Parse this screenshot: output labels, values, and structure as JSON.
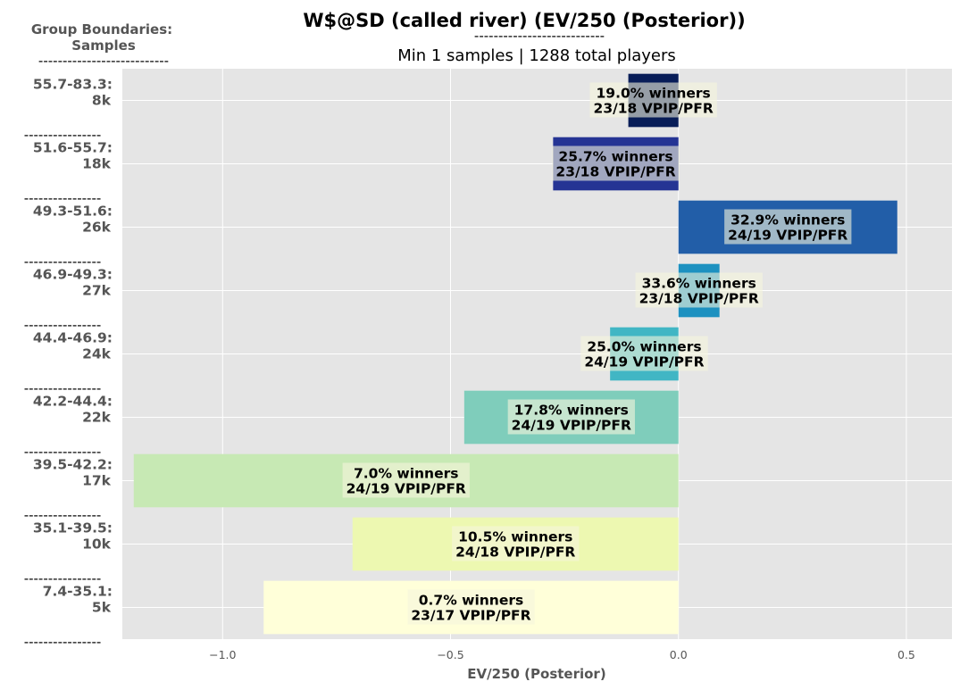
{
  "title": "W$@SD (called river) (EV/250 (Posterior))",
  "title_underline": "---------------------------",
  "subtitle": "Min 1 samples | 1288 total players",
  "boundaries_header": {
    "line1": "Group Boundaries:",
    "line2": "Samples",
    "underline": "---------------------------"
  },
  "separator": "----------------",
  "colors": {
    "plot_bg": "#e5e5e5",
    "grid": "#ffffff",
    "label_box": "#f5f5dc"
  },
  "chart_data": {
    "type": "bar",
    "orientation": "horizontal",
    "xlabel": "EV/250 (Posterior)",
    "xlim": [
      -1.22,
      0.6
    ],
    "xticks": [
      -1.0,
      -0.5,
      0.0,
      0.5
    ],
    "xtick_labels": [
      "−1.0",
      "−0.5",
      "0.0",
      "0.5"
    ],
    "grid": true,
    "bars": [
      {
        "range": "55.7-83.3:",
        "samples": "8k",
        "value": -0.11,
        "winners": "19.0% winners",
        "vpip_pfr": "23/18 VPIP/PFR",
        "color": "#081d58"
      },
      {
        "range": "51.6-55.7:",
        "samples": "18k",
        "value": -0.275,
        "winners": "25.7% winners",
        "vpip_pfr": "23/18 VPIP/PFR",
        "color": "#253494"
      },
      {
        "range": "49.3-51.6:",
        "samples": "26k",
        "value": 0.48,
        "winners": "32.9% winners",
        "vpip_pfr": "24/19 VPIP/PFR",
        "color": "#225ea8"
      },
      {
        "range": "46.9-49.3:",
        "samples": "27k",
        "value": 0.09,
        "winners": "33.6% winners",
        "vpip_pfr": "23/18 VPIP/PFR",
        "color": "#1d91c0"
      },
      {
        "range": "44.4-46.9:",
        "samples": "24k",
        "value": -0.15,
        "winners": "25.0% winners",
        "vpip_pfr": "24/19 VPIP/PFR",
        "color": "#41b6c4"
      },
      {
        "range": "42.2-44.4:",
        "samples": "22k",
        "value": -0.47,
        "winners": "17.8% winners",
        "vpip_pfr": "24/19 VPIP/PFR",
        "color": "#7fcdbb"
      },
      {
        "range": "39.5-42.2:",
        "samples": "17k",
        "value": -1.195,
        "winners": "7.0% winners",
        "vpip_pfr": "24/19 VPIP/PFR",
        "color": "#c7e9b4"
      },
      {
        "range": "35.1-39.5:",
        "samples": "10k",
        "value": -0.715,
        "winners": "10.5% winners",
        "vpip_pfr": "24/18 VPIP/PFR",
        "color": "#edf8b1"
      },
      {
        "range": "7.4-35.1:",
        "samples": "5k",
        "value": -0.91,
        "winners": "0.7% winners",
        "vpip_pfr": "23/17 VPIP/PFR",
        "color": "#ffffd9"
      }
    ]
  }
}
